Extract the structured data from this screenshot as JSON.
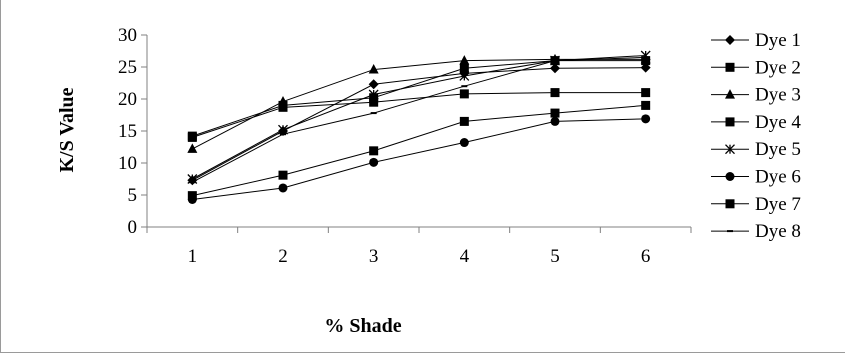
{
  "chart_data": {
    "type": "line",
    "title": "",
    "xlabel": "% Shade",
    "ylabel": "K/S Value",
    "categories": [
      "1",
      "2",
      "3",
      "4",
      "5",
      "6"
    ],
    "y_ticks": [
      "0",
      "5",
      "10",
      "15",
      "20",
      "25",
      "30"
    ],
    "ylim": [
      0,
      30
    ],
    "grid": false,
    "legend_position": "right",
    "series": [
      {
        "name": "Dye 1",
        "marker": "diamond",
        "values": [
          7.3,
          15.0,
          22.3,
          24.0,
          24.8,
          24.9
        ]
      },
      {
        "name": "Dye 2",
        "marker": "square",
        "values": [
          14.2,
          19.0,
          20.2,
          24.8,
          26.0,
          26.0
        ]
      },
      {
        "name": "Dye 3",
        "marker": "triangle",
        "values": [
          12.2,
          19.6,
          24.6,
          26.0,
          26.2,
          26.2
        ]
      },
      {
        "name": "Dye 4",
        "marker": "square",
        "values": [
          14.0,
          18.7,
          19.5,
          20.8,
          21.0,
          21.0
        ]
      },
      {
        "name": "Dye 5",
        "marker": "star",
        "values": [
          7.5,
          15.2,
          20.7,
          23.6,
          26.0,
          26.8
        ]
      },
      {
        "name": "Dye 6",
        "marker": "circle",
        "values": [
          4.3,
          6.1,
          10.1,
          13.2,
          16.5,
          16.9
        ]
      },
      {
        "name": "Dye 7",
        "marker": "square",
        "values": [
          4.9,
          8.1,
          11.9,
          16.5,
          17.8,
          19.0
        ]
      },
      {
        "name": "Dye 8",
        "marker": "dash",
        "values": [
          7.0,
          14.5,
          17.8,
          22.0,
          26.0,
          26.5
        ]
      }
    ],
    "colors": {
      "line": "#000000",
      "axis": "#808080",
      "frame": "#9a9a9a"
    }
  }
}
